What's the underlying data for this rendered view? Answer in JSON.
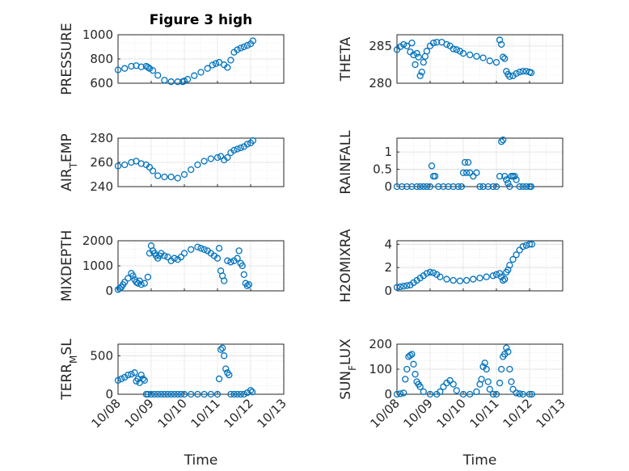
{
  "figure": {
    "title": "Figure 3 high"
  },
  "x_tick_labels": [
    "10/08",
    "10/09",
    "10/10",
    "10/11",
    "10/12",
    "10/13"
  ],
  "x_label": "Time",
  "style": {
    "marker_color": "#0072BD",
    "axis_color": "#262626",
    "grid_color": "#dcdcdc"
  },
  "chart_data": [
    {
      "type": "scatter",
      "name": "pressure",
      "title": "Figure 3 high",
      "ylabel": "PRESSURE",
      "ylabel_parts": [
        {
          "t": "PRESSURE",
          "sub": false
        }
      ],
      "xlim": [
        0,
        5
      ],
      "ylim": [
        600,
        1000
      ],
      "yticks": [
        600,
        800,
        1000
      ],
      "ytick_labels": [
        "600",
        "800",
        "1000"
      ],
      "grid": true,
      "x": [
        0.0,
        0.2,
        0.4,
        0.55,
        0.7,
        0.85,
        0.9,
        0.95,
        1.05,
        1.2,
        1.4,
        1.6,
        1.8,
        1.95,
        2.0,
        2.1,
        2.3,
        2.5,
        2.7,
        2.85,
        2.95,
        3.05,
        3.2,
        3.3,
        3.4,
        3.5,
        3.6,
        3.7,
        3.8,
        3.9,
        4.0,
        4.07
      ],
      "y": [
        710,
        722,
        740,
        745,
        735,
        740,
        732,
        722,
        705,
        665,
        625,
        612,
        612,
        612,
        618,
        632,
        662,
        690,
        722,
        750,
        762,
        772,
        752,
        730,
        790,
        855,
        876,
        890,
        900,
        912,
        925,
        950
      ]
    },
    {
      "type": "scatter",
      "name": "theta",
      "ylabel": "THETA",
      "ylabel_parts": [
        {
          "t": "THETA",
          "sub": false
        }
      ],
      "xlim": [
        0,
        5
      ],
      "ylim": [
        280,
        286.5
      ],
      "yticks": [
        280,
        285
      ],
      "ytick_labels": [
        "280",
        "285"
      ],
      "grid": true,
      "x": [
        0.0,
        0.1,
        0.2,
        0.3,
        0.4,
        0.45,
        0.5,
        0.55,
        0.6,
        0.65,
        0.7,
        0.75,
        0.8,
        0.85,
        0.9,
        1.0,
        1.1,
        1.2,
        1.35,
        1.5,
        1.6,
        1.7,
        1.8,
        1.9,
        2.0,
        2.2,
        2.4,
        2.6,
        2.8,
        3.0,
        3.1,
        3.15,
        3.2,
        3.25,
        3.3,
        3.35,
        3.4,
        3.5,
        3.6,
        3.7,
        3.8,
        3.9,
        4.0,
        4.05
      ],
      "y": [
        284.5,
        284.9,
        285.2,
        285.0,
        284.2,
        285.4,
        283.8,
        282.5,
        284.0,
        283.5,
        281.0,
        281.5,
        282.8,
        283.6,
        284.3,
        285.0,
        285.4,
        285.5,
        285.5,
        285.2,
        285.0,
        284.6,
        284.5,
        284.3,
        284.0,
        283.8,
        283.6,
        283.4,
        283.0,
        282.8,
        285.8,
        285.2,
        283.5,
        283.3,
        281.6,
        281.2,
        280.9,
        281.0,
        281.3,
        281.5,
        281.6,
        281.6,
        281.5,
        281.4
      ]
    },
    {
      "type": "scatter",
      "name": "air_temp",
      "ylabel": "AIR_TEMP",
      "ylabel_parts": [
        {
          "t": "AIR",
          "sub": false
        },
        {
          "t": "T",
          "sub": true
        },
        {
          "t": "EMP",
          "sub": false
        }
      ],
      "xlim": [
        0,
        5
      ],
      "ylim": [
        240,
        280
      ],
      "yticks": [
        240,
        260,
        280
      ],
      "ytick_labels": [
        "240",
        "260",
        "280"
      ],
      "grid": true,
      "x": [
        0.0,
        0.2,
        0.4,
        0.55,
        0.7,
        0.85,
        0.95,
        1.05,
        1.2,
        1.4,
        1.6,
        1.8,
        2.0,
        2.2,
        2.4,
        2.6,
        2.8,
        3.0,
        3.1,
        3.2,
        3.3,
        3.4,
        3.5,
        3.6,
        3.7,
        3.8,
        3.9,
        4.0,
        4.07
      ],
      "y": [
        257,
        258,
        260,
        261,
        259,
        258,
        256,
        253,
        249,
        248,
        248,
        247,
        250,
        254,
        258,
        261,
        263,
        264,
        265,
        262,
        264,
        268,
        270,
        271,
        272,
        273,
        275,
        276,
        278
      ]
    },
    {
      "type": "scatter",
      "name": "rainfall",
      "ylabel": "RAINFALL",
      "ylabel_parts": [
        {
          "t": "RAINFALL",
          "sub": false
        }
      ],
      "xlim": [
        0,
        5
      ],
      "ylim": [
        0,
        1.4
      ],
      "yticks": [
        0,
        0.5,
        1
      ],
      "ytick_labels": [
        "0",
        "0.5",
        "1"
      ],
      "grid": true,
      "x": [
        0.0,
        0.15,
        0.3,
        0.45,
        0.6,
        0.7,
        0.8,
        0.9,
        1.0,
        1.05,
        1.1,
        1.15,
        1.25,
        1.4,
        1.55,
        1.7,
        1.85,
        1.95,
        2.0,
        2.05,
        2.1,
        2.15,
        2.2,
        2.3,
        2.4,
        2.5,
        2.6,
        2.75,
        2.9,
        3.0,
        3.1,
        3.15,
        3.2,
        3.25,
        3.3,
        3.35,
        3.4,
        3.45,
        3.5,
        3.55,
        3.6,
        3.7,
        3.8,
        3.9,
        4.0,
        4.05
      ],
      "y": [
        0,
        0,
        0,
        0,
        0,
        0,
        0,
        0,
        0,
        0.6,
        0.3,
        0.3,
        0,
        0,
        0,
        0,
        0,
        0,
        0.4,
        0.7,
        0.4,
        0.7,
        0.4,
        0.3,
        0.4,
        0,
        0,
        0,
        0,
        0,
        0.3,
        1.3,
        1.35,
        0.3,
        0.2,
        0.1,
        0,
        0.3,
        0.3,
        0.3,
        0.2,
        0,
        0,
        0,
        0,
        0
      ]
    },
    {
      "type": "scatter",
      "name": "mixdepth",
      "ylabel": "MIXDEPTH",
      "ylabel_parts": [
        {
          "t": "MIXDEPTH",
          "sub": false
        }
      ],
      "xlim": [
        0,
        5
      ],
      "ylim": [
        0,
        2000
      ],
      "yticks": [
        0,
        1000,
        2000
      ],
      "ytick_labels": [
        "0",
        "1000",
        "2000"
      ],
      "grid": true,
      "x": [
        0.0,
        0.05,
        0.1,
        0.15,
        0.2,
        0.3,
        0.4,
        0.45,
        0.5,
        0.55,
        0.6,
        0.65,
        0.7,
        0.8,
        0.9,
        0.95,
        1.0,
        1.05,
        1.1,
        1.15,
        1.2,
        1.25,
        1.3,
        1.4,
        1.5,
        1.6,
        1.7,
        1.8,
        1.9,
        2.0,
        2.2,
        2.4,
        2.5,
        2.6,
        2.7,
        2.8,
        2.9,
        3.0,
        3.05,
        3.1,
        3.15,
        3.2,
        3.3,
        3.4,
        3.5,
        3.6,
        3.65,
        3.7,
        3.75,
        3.8,
        3.85,
        3.9,
        3.95
      ],
      "y": [
        50,
        100,
        150,
        250,
        350,
        500,
        700,
        600,
        450,
        350,
        300,
        400,
        250,
        300,
        550,
        1500,
        1800,
        1600,
        1500,
        1400,
        1300,
        1400,
        1500,
        1400,
        1350,
        1200,
        1300,
        1250,
        1350,
        1500,
        1650,
        1750,
        1700,
        1650,
        1600,
        1500,
        1400,
        1300,
        1700,
        800,
        600,
        400,
        1200,
        1150,
        1200,
        1300,
        1600,
        1100,
        1000,
        650,
        300,
        200,
        250
      ]
    },
    {
      "type": "scatter",
      "name": "h2omixra",
      "ylabel": "H2OMIXRA",
      "ylabel_parts": [
        {
          "t": "H2OMIXRA",
          "sub": false
        }
      ],
      "xlim": [
        0,
        5
      ],
      "ylim": [
        0,
        4.3
      ],
      "yticks": [
        0,
        2,
        4
      ],
      "ytick_labels": [
        "0",
        "2",
        "4"
      ],
      "grid": true,
      "x": [
        0.0,
        0.1,
        0.2,
        0.3,
        0.4,
        0.5,
        0.6,
        0.7,
        0.8,
        0.9,
        1.0,
        1.1,
        1.2,
        1.3,
        1.5,
        1.7,
        1.9,
        2.1,
        2.3,
        2.5,
        2.7,
        2.9,
        3.0,
        3.1,
        3.15,
        3.2,
        3.25,
        3.3,
        3.35,
        3.4,
        3.5,
        3.6,
        3.7,
        3.8,
        3.9,
        4.0,
        4.07
      ],
      "y": [
        0.3,
        0.35,
        0.4,
        0.45,
        0.5,
        0.7,
        0.9,
        1.1,
        1.3,
        1.5,
        1.6,
        1.55,
        1.4,
        1.2,
        1.0,
        0.9,
        0.85,
        0.9,
        1.0,
        1.1,
        1.2,
        1.3,
        1.4,
        1.5,
        1.2,
        0.9,
        1.0,
        1.6,
        1.8,
        2.2,
        2.7,
        3.1,
        3.5,
        3.8,
        3.9,
        4.0,
        4.0
      ]
    },
    {
      "type": "scatter",
      "name": "terr_msl",
      "ylabel": "TERR_MSL",
      "ylabel_parts": [
        {
          "t": "TERR",
          "sub": false
        },
        {
          "t": "M",
          "sub": true
        },
        {
          "t": "SL",
          "sub": false
        }
      ],
      "xlim": [
        0,
        5
      ],
      "ylim": [
        0,
        650
      ],
      "yticks": [
        0,
        500
      ],
      "ytick_labels": [
        "0",
        "500"
      ],
      "grid": true,
      "x": [
        0.0,
        0.1,
        0.2,
        0.3,
        0.4,
        0.5,
        0.55,
        0.6,
        0.65,
        0.7,
        0.75,
        0.8,
        0.85,
        0.9,
        1.0,
        1.1,
        1.2,
        1.3,
        1.4,
        1.5,
        1.6,
        1.7,
        1.8,
        1.9,
        2.0,
        2.2,
        2.4,
        2.6,
        2.8,
        3.0,
        3.05,
        3.1,
        3.15,
        3.2,
        3.25,
        3.3,
        3.35,
        3.4,
        3.5,
        3.6,
        3.7,
        3.8,
        3.9,
        4.0,
        4.05
      ],
      "y": [
        180,
        200,
        220,
        250,
        260,
        280,
        170,
        200,
        150,
        250,
        200,
        180,
        0,
        0,
        0,
        0,
        0,
        0,
        0,
        0,
        0,
        0,
        0,
        0,
        0,
        0,
        0,
        0,
        0,
        0,
        200,
        580,
        600,
        500,
        330,
        280,
        250,
        0,
        0,
        0,
        0,
        0,
        20,
        50,
        30
      ]
    },
    {
      "type": "scatter",
      "name": "sun_flux",
      "ylabel": "SUN_FLUX",
      "ylabel_parts": [
        {
          "t": "SUN",
          "sub": false
        },
        {
          "t": "F",
          "sub": true
        },
        {
          "t": "LUX",
          "sub": false
        }
      ],
      "xlim": [
        0,
        5
      ],
      "ylim": [
        0,
        200
      ],
      "yticks": [
        0,
        100,
        200
      ],
      "ytick_labels": [
        "0",
        "100",
        "200"
      ],
      "grid": true,
      "x": [
        0.0,
        0.1,
        0.2,
        0.25,
        0.3,
        0.35,
        0.4,
        0.45,
        0.5,
        0.55,
        0.6,
        0.65,
        0.7,
        0.8,
        1.0,
        1.2,
        1.3,
        1.4,
        1.5,
        1.6,
        1.7,
        1.8,
        2.0,
        2.2,
        2.4,
        2.5,
        2.55,
        2.6,
        2.65,
        2.7,
        2.75,
        2.8,
        2.9,
        3.0,
        3.1,
        3.15,
        3.2,
        3.25,
        3.3,
        3.35,
        3.4,
        3.45,
        3.5,
        3.6,
        3.7,
        3.8,
        4.0,
        4.07
      ],
      "y": [
        0,
        2,
        5,
        60,
        100,
        150,
        155,
        160,
        120,
        80,
        50,
        40,
        30,
        10,
        0,
        0,
        10,
        30,
        45,
        55,
        40,
        15,
        0,
        0,
        10,
        40,
        60,
        110,
        125,
        100,
        50,
        20,
        0,
        0,
        45,
        100,
        150,
        160,
        185,
        170,
        100,
        50,
        20,
        5,
        2,
        0,
        0,
        0
      ]
    }
  ]
}
